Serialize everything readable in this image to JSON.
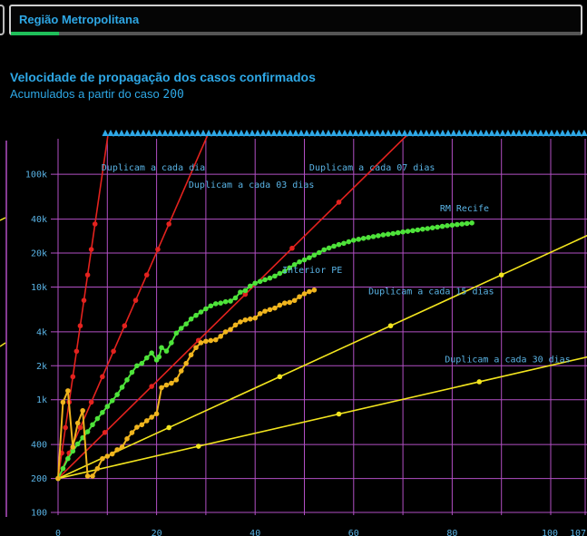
{
  "header": {
    "region_select": "Região Metropolitana",
    "progress_fraction": 0.085
  },
  "chart_data": {
    "type": "line",
    "title": "Velocidade de propagação dos casos confirmados",
    "subtitle_prefix": "Acumulados a partir do caso ",
    "subtitle_value": "200",
    "y_scale": "log",
    "ylim": [
      100,
      130000
    ],
    "xlim": [
      0,
      107
    ],
    "grid": true,
    "y_ticks": [
      {
        "v": 100,
        "label": "100"
      },
      {
        "v": 200,
        "label": "200"
      },
      {
        "v": 400,
        "label": "400"
      },
      {
        "v": 1000,
        "label": "1k"
      },
      {
        "v": 2000,
        "label": "2k"
      },
      {
        "v": 4000,
        "label": "4k"
      },
      {
        "v": 10000,
        "label": "10k"
      },
      {
        "v": 20000,
        "label": "20k"
      },
      {
        "v": 40000,
        "label": "40k"
      },
      {
        "v": 100000,
        "label": "100k"
      }
    ],
    "x_ticks": [
      {
        "v": 0,
        "label": "0"
      },
      {
        "v": 20,
        "label": "20"
      },
      {
        "v": 40,
        "label": "40"
      },
      {
        "v": 60,
        "label": "60"
      },
      {
        "v": 80,
        "label": "80"
      },
      {
        "v": 100,
        "label": "100"
      },
      {
        "v": 107,
        "label": "107"
      }
    ],
    "colors": {
      "red": "#e3221e",
      "yellow": "#f2e41e",
      "green": "#4ee33a",
      "orange": "#f0b51e",
      "grid": "#b24fc4",
      "label": "#5ab4e6"
    },
    "reference_lines": [
      {
        "name": "Duplicam a cada dia",
        "days": 1,
        "color": "#e3221e",
        "label_x": 8.8,
        "label_v": 108000,
        "marker_end": 7.5
      },
      {
        "name": "Duplicam a cada 03 dias",
        "days": 3,
        "color": "#e3221e",
        "label_x": 26.5,
        "label_v": 76000,
        "marker_end": 24
      },
      {
        "name": "Duplicam a cada 07 dias",
        "days": 7,
        "color": "#e3221e",
        "label_x": 51,
        "label_v": 108000,
        "marker_end": 70
      },
      {
        "name": "Duplicam a cada 15 dias",
        "days": 15,
        "color": "#f2e41e",
        "label_x": 63,
        "label_v": 8600,
        "marker_end": 108
      },
      {
        "name": "Duplicam a cada 30 dias",
        "days": 30,
        "color": "#f2e41e",
        "label_x": 78.5,
        "label_v": 2150,
        "marker_end": 108
      }
    ],
    "series": [
      {
        "name": "RM Recife",
        "color": "#4ee33a",
        "label_x": 77.5,
        "label_v": 47000,
        "points": [
          [
            0,
            200
          ],
          [
            1,
            245
          ],
          [
            2,
            300
          ],
          [
            3,
            350
          ],
          [
            4,
            405
          ],
          [
            5,
            460
          ],
          [
            6,
            520
          ],
          [
            7,
            600
          ],
          [
            8,
            680
          ],
          [
            9,
            770
          ],
          [
            10,
            870
          ],
          [
            11,
            980
          ],
          [
            12,
            1110
          ],
          [
            13,
            1290
          ],
          [
            14,
            1500
          ],
          [
            15,
            1750
          ],
          [
            16,
            2000
          ],
          [
            17,
            2100
          ],
          [
            18,
            2350
          ],
          [
            19,
            2600
          ],
          [
            20,
            2250
          ],
          [
            20.5,
            2400
          ],
          [
            21,
            2900
          ],
          [
            22,
            2700
          ],
          [
            23,
            3200
          ],
          [
            24,
            3900
          ],
          [
            25,
            4300
          ],
          [
            26,
            4700
          ],
          [
            27,
            5200
          ],
          [
            28,
            5600
          ],
          [
            29,
            6000
          ],
          [
            30,
            6400
          ],
          [
            31,
            6800
          ],
          [
            32,
            7100
          ],
          [
            33,
            7200
          ],
          [
            34,
            7400
          ],
          [
            35,
            7500
          ],
          [
            36,
            8000
          ],
          [
            37,
            9000
          ],
          [
            38,
            9300
          ],
          [
            39,
            10200
          ],
          [
            40,
            10800
          ],
          [
            41,
            11200
          ],
          [
            42,
            11600
          ],
          [
            43,
            12000
          ],
          [
            44,
            12500
          ],
          [
            45,
            13200
          ],
          [
            46,
            13800
          ],
          [
            47,
            14800
          ],
          [
            48,
            15800
          ],
          [
            49,
            16700
          ],
          [
            50,
            17400
          ],
          [
            51,
            18200
          ],
          [
            52,
            19200
          ],
          [
            53,
            20200
          ],
          [
            54,
            21400
          ],
          [
            55,
            22200
          ],
          [
            56,
            23000
          ],
          [
            57,
            23800
          ],
          [
            58,
            24400
          ],
          [
            59,
            25200
          ],
          [
            60,
            26000
          ],
          [
            61,
            26500
          ],
          [
            62,
            27000
          ],
          [
            63,
            27500
          ],
          [
            64,
            28000
          ],
          [
            65,
            28500
          ],
          [
            66,
            29000
          ],
          [
            67,
            29400
          ],
          [
            68,
            29800
          ],
          [
            69,
            30300
          ],
          [
            70,
            30800
          ],
          [
            71,
            31200
          ],
          [
            72,
            31600
          ],
          [
            73,
            32100
          ],
          [
            74,
            32600
          ],
          [
            75,
            33000
          ],
          [
            76,
            33500
          ],
          [
            77,
            34000
          ],
          [
            78,
            34500
          ],
          [
            79,
            35000
          ],
          [
            80,
            35400
          ],
          [
            81,
            35800
          ],
          [
            82,
            36200
          ],
          [
            83,
            36600
          ],
          [
            84,
            37000
          ]
        ]
      },
      {
        "name": "Interior PE",
        "color": "#f0b51e",
        "label_x": 45.5,
        "label_v": 13300,
        "points": [
          [
            0,
            200
          ],
          [
            1,
            950
          ],
          [
            2,
            1200
          ],
          [
            3,
            380
          ],
          [
            4,
            620
          ],
          [
            5,
            800
          ],
          [
            6,
            210
          ],
          [
            7,
            210
          ],
          [
            8,
            245
          ],
          [
            9,
            300
          ],
          [
            10,
            315
          ],
          [
            11,
            330
          ],
          [
            12,
            360
          ],
          [
            13,
            380
          ],
          [
            14,
            450
          ],
          [
            15,
            510
          ],
          [
            16,
            570
          ],
          [
            17,
            600
          ],
          [
            18,
            650
          ],
          [
            19,
            700
          ],
          [
            20,
            750
          ],
          [
            21,
            1280
          ],
          [
            22,
            1350
          ],
          [
            23,
            1400
          ],
          [
            24,
            1500
          ],
          [
            25,
            1800
          ],
          [
            26,
            2100
          ],
          [
            27,
            2500
          ],
          [
            28,
            2900
          ],
          [
            29,
            3200
          ],
          [
            30,
            3300
          ],
          [
            31,
            3350
          ],
          [
            32,
            3400
          ],
          [
            33,
            3650
          ],
          [
            34,
            4000
          ],
          [
            35,
            4200
          ],
          [
            36,
            4600
          ],
          [
            37,
            4900
          ],
          [
            38,
            5100
          ],
          [
            39,
            5200
          ],
          [
            40,
            5300
          ],
          [
            41,
            5800
          ],
          [
            42,
            6100
          ],
          [
            43,
            6300
          ],
          [
            44,
            6500
          ],
          [
            45,
            6900
          ],
          [
            46,
            7200
          ],
          [
            47,
            7300
          ],
          [
            48,
            7600
          ],
          [
            49,
            8200
          ],
          [
            50,
            8700
          ],
          [
            51,
            9100
          ],
          [
            52,
            9400
          ]
        ]
      }
    ]
  }
}
